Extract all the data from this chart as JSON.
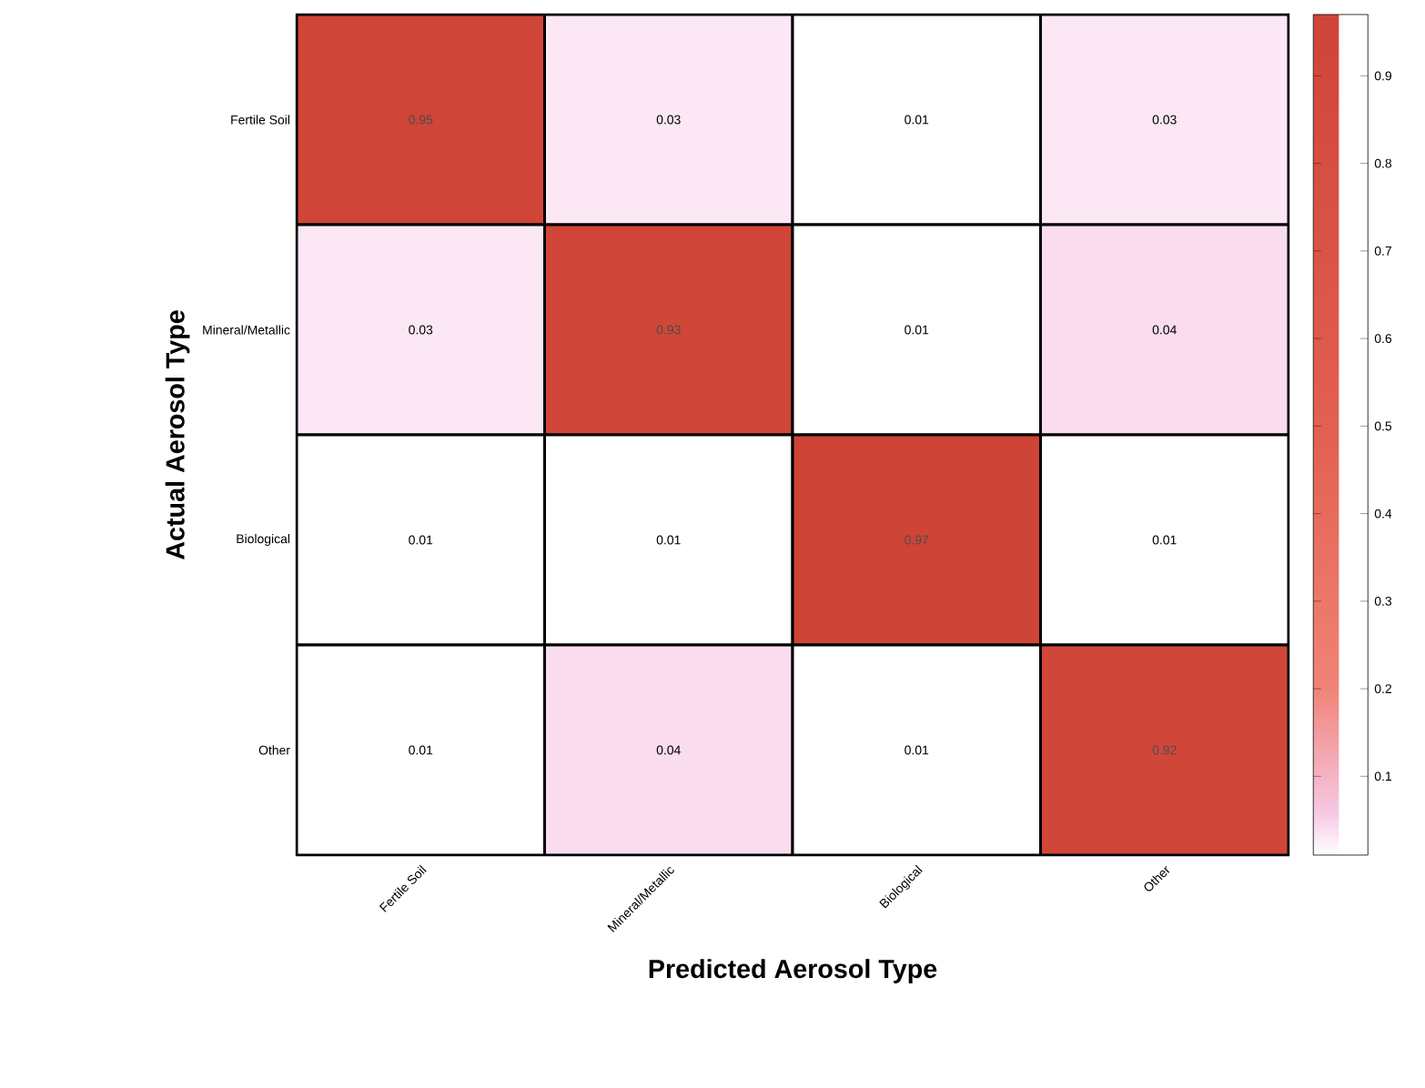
{
  "chart_data": {
    "type": "heatmap",
    "xlabel": "Predicted Aerosol Type",
    "ylabel": "Actual Aerosol Type",
    "categories": [
      "Fertile Soil",
      "Mineral/Metallic",
      "Biological",
      "Other"
    ],
    "y_categories": [
      "Fertile Soil",
      "Mineral/Metallic",
      "Biological",
      "Other"
    ],
    "cells": [
      [
        0.95,
        0.03,
        0.01,
        0.03
      ],
      [
        0.03,
        0.93,
        0.01,
        0.04
      ],
      [
        0.01,
        0.01,
        0.97,
        0.01
      ],
      [
        0.01,
        0.04,
        0.01,
        0.92
      ]
    ],
    "data_labels": true,
    "clim": [
      0.01,
      0.97
    ],
    "cticks": [
      0.1,
      0.2,
      0.3,
      0.4,
      0.5,
      0.6,
      0.7,
      0.8,
      0.9
    ]
  }
}
